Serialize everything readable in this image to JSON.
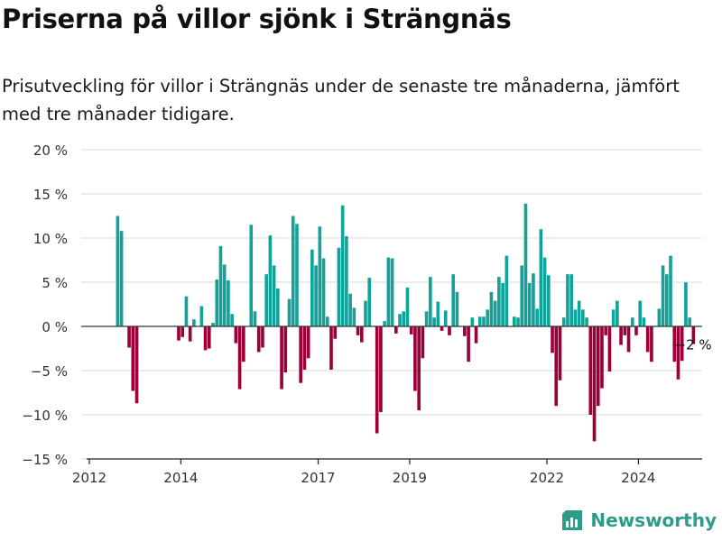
{
  "title": "Priserna på villor sjönk i Strängnäs",
  "subtitle": "Prisutveckling för villor i Strängnäs under de senaste tre månaderna, jämfört med tre månader tidigare.",
  "brand": {
    "name": "Newsworthy",
    "icon": "bar-chart-logo-icon"
  },
  "colors": {
    "positive": "#11a39a",
    "negative": "#9b0039",
    "grid": "#d9d9d9",
    "axis": "#222222",
    "brand": "#2e9c8a"
  },
  "chart_data": {
    "type": "bar",
    "xlabel": "",
    "ylabel": "",
    "ylim": [
      -15,
      20
    ],
    "grid": true,
    "y_ticks": [
      {
        "value": 20,
        "label": "20 %"
      },
      {
        "value": 15,
        "label": "15 %"
      },
      {
        "value": 10,
        "label": "10 %"
      },
      {
        "value": 5,
        "label": "5 %"
      },
      {
        "value": 0,
        "label": "0 %"
      },
      {
        "value": -5,
        "label": "−5 %"
      },
      {
        "value": -10,
        "label": "−10 %"
      },
      {
        "value": -15,
        "label": "−15 %"
      }
    ],
    "x_ticks": [
      {
        "value": 2012,
        "label": "2012"
      },
      {
        "value": 2014,
        "label": "2014"
      },
      {
        "value": 2017,
        "label": "2017"
      },
      {
        "value": 2019,
        "label": "2019"
      },
      {
        "value": 2022,
        "label": "2022"
      },
      {
        "value": 2024,
        "label": "2024"
      }
    ],
    "x_range": [
      2012,
      2025.6
    ],
    "start_month": "2012-08",
    "values": [
      12.5,
      10.8,
      null,
      -2.4,
      -7.3,
      -8.7,
      null,
      null,
      null,
      null,
      null,
      null,
      null,
      null,
      null,
      null,
      -1.6,
      -1.2,
      3.4,
      -1.7,
      0.8,
      null,
      2.3,
      -2.7,
      -2.5,
      0.4,
      5.3,
      9.1,
      7.0,
      5.2,
      1.4,
      -1.9,
      -7.1,
      -4.0,
      null,
      11.5,
      1.7,
      -2.9,
      -2.4,
      5.9,
      10.3,
      6.9,
      4.3,
      -7.1,
      -5.2,
      3.1,
      12.5,
      11.6,
      -6.4,
      -4.9,
      -3.6,
      8.7,
      6.9,
      11.3,
      7.7,
      1.1,
      -4.9,
      -1.4,
      8.9,
      13.7,
      10.2,
      3.7,
      2.1,
      -1.0,
      -1.8,
      2.9,
      5.5,
      null,
      -12.1,
      -9.7,
      0.6,
      7.8,
      7.7,
      -0.8,
      1.4,
      1.7,
      4.4,
      -0.9,
      -7.3,
      -9.5,
      -3.6,
      1.7,
      5.6,
      1.0,
      2.8,
      -0.5,
      1.8,
      -1.0,
      5.9,
      3.9,
      null,
      -1.1,
      -4.0,
      1.0,
      -1.9,
      1.1,
      1.1,
      1.9,
      3.9,
      2.9,
      5.6,
      4.9,
      8.0,
      null,
      1.1,
      1.0,
      6.9,
      13.9,
      4.9,
      6.0,
      2.0,
      11.0,
      7.8,
      5.8,
      -3.0,
      -9.0,
      -6.1,
      1.0,
      5.9,
      5.9,
      1.9,
      2.9,
      1.9,
      1.0,
      -10.0,
      -13.0,
      -9.0,
      -7.0,
      -1.0,
      -5.1,
      1.9,
      2.9,
      -2.1,
      -1.0,
      -2.9,
      1.0,
      -1.0,
      2.9,
      1.0,
      -2.9,
      -4.0,
      null,
      2.0,
      6.9,
      5.9,
      8.0,
      -4.0,
      -6.0,
      -3.9,
      5.0,
      1.0,
      -2.0
    ],
    "last_value_label": "−2 %"
  }
}
